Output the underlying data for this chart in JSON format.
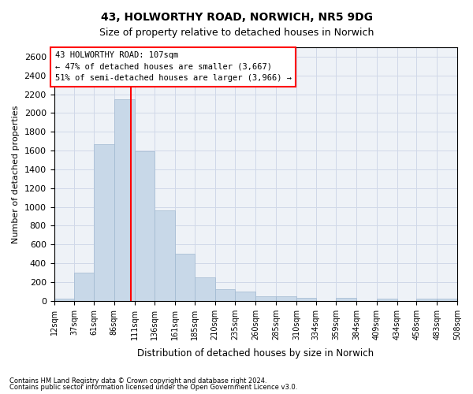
{
  "title_line1": "43, HOLWORTHY ROAD, NORWICH, NR5 9DG",
  "title_line2": "Size of property relative to detached houses in Norwich",
  "xlabel": "Distribution of detached houses by size in Norwich",
  "ylabel": "Number of detached properties",
  "footnote1": "Contains HM Land Registry data © Crown copyright and database right 2024.",
  "footnote2": "Contains public sector information licensed under the Open Government Licence v3.0.",
  "annotation_line1": "43 HOLWORTHY ROAD: 107sqm",
  "annotation_line2": "← 47% of detached houses are smaller (3,667)",
  "annotation_line3": "51% of semi-detached houses are larger (3,966) →",
  "property_size": 107,
  "bar_color": "#c8d8e8",
  "bar_edge_color": "#a0b8d0",
  "vline_color": "red",
  "grid_color": "#d0d8e8",
  "background_color": "#eef2f7",
  "bin_edges": [
    12,
    37,
    61,
    86,
    111,
    136,
    161,
    185,
    210,
    235,
    260,
    285,
    310,
    334,
    359,
    384,
    409,
    434,
    458,
    483,
    508
  ],
  "bar_heights": [
    25,
    300,
    1670,
    2150,
    1590,
    960,
    500,
    250,
    120,
    100,
    50,
    50,
    30,
    0,
    30,
    0,
    20,
    0,
    20,
    25
  ],
  "ylim": [
    0,
    2700
  ],
  "yticks": [
    0,
    200,
    400,
    600,
    800,
    1000,
    1200,
    1400,
    1600,
    1800,
    2000,
    2200,
    2400,
    2600
  ],
  "tick_labels": [
    "12sqm",
    "37sqm",
    "61sqm",
    "86sqm",
    "111sqm",
    "136sqm",
    "161sqm",
    "185sqm",
    "210sqm",
    "235sqm",
    "260sqm",
    "285sqm",
    "310sqm",
    "334sqm",
    "359sqm",
    "384sqm",
    "409sqm",
    "434sqm",
    "458sqm",
    "483sqm",
    "508sqm"
  ]
}
